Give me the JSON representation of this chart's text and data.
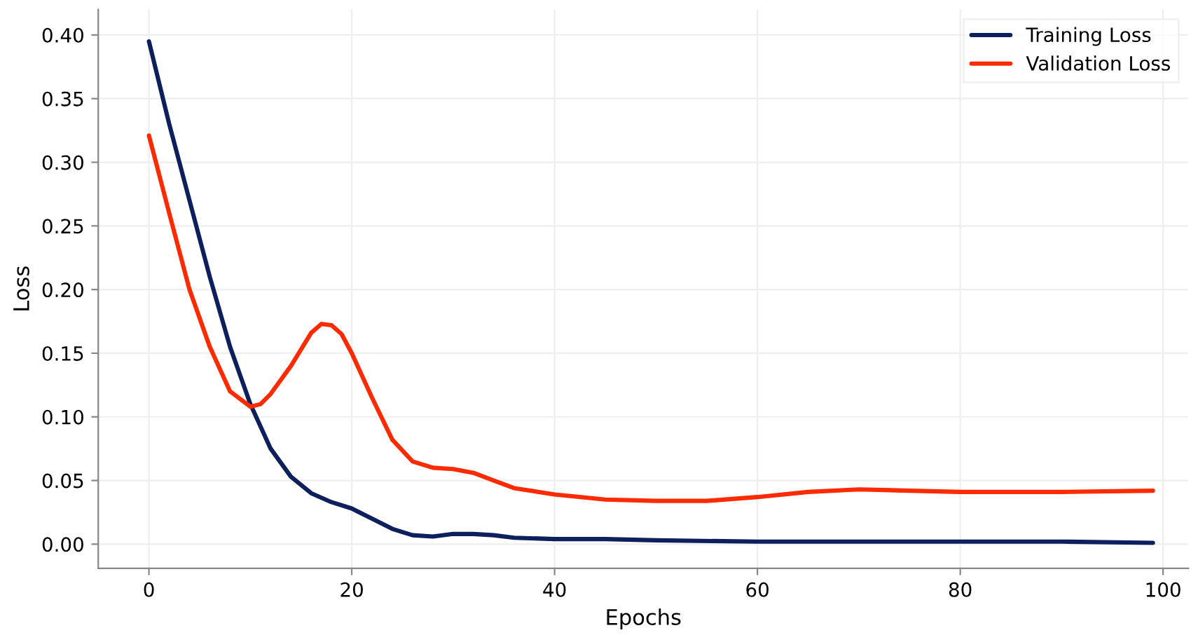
{
  "chart_data": {
    "type": "line",
    "xlabel": "Epochs",
    "ylabel": "Loss",
    "xlim": [
      -5,
      102.5
    ],
    "xticks": [
      0,
      20,
      40,
      60,
      80,
      100
    ],
    "ylim": [
      -0.019,
      0.42
    ],
    "yticks": [
      {
        "value": 0,
        "label": "0.00"
      },
      {
        "value": 0.05,
        "label": "0.05"
      },
      {
        "value": 0.1,
        "label": "0.10"
      },
      {
        "value": 0.15,
        "label": "0.15"
      },
      {
        "value": 0.2,
        "label": "0.20"
      },
      {
        "value": 0.25,
        "label": "0.25"
      },
      {
        "value": 0.3,
        "label": "0.30"
      },
      {
        "value": 0.35,
        "label": "0.35"
      },
      {
        "value": 0.4,
        "label": "0.40"
      }
    ],
    "grid": true,
    "legend": "top right",
    "series": [
      {
        "name": "Training Loss",
        "color": "#0d1f5c",
        "x": [
          0,
          2,
          4,
          6,
          8,
          10,
          12,
          14,
          16,
          18,
          20,
          22,
          24,
          26,
          28,
          30,
          32,
          34,
          36,
          40,
          45,
          50,
          60,
          70,
          80,
          90,
          99
        ],
        "values": [
          0.395,
          0.33,
          0.27,
          0.21,
          0.155,
          0.11,
          0.075,
          0.053,
          0.04,
          0.033,
          0.028,
          0.02,
          0.012,
          0.007,
          0.006,
          0.008,
          0.008,
          0.007,
          0.005,
          0.004,
          0.004,
          0.003,
          0.002,
          0.002,
          0.002,
          0.002,
          0.001
        ]
      },
      {
        "name": "Validation Loss",
        "color": "#ff2a00",
        "x": [
          0,
          2,
          4,
          6,
          8,
          10,
          11,
          12,
          14,
          16,
          17,
          18,
          19,
          20,
          22,
          24,
          26,
          28,
          30,
          32,
          34,
          36,
          40,
          45,
          50,
          55,
          60,
          65,
          70,
          75,
          80,
          90,
          99
        ],
        "values": [
          0.321,
          0.26,
          0.2,
          0.155,
          0.12,
          0.108,
          0.11,
          0.118,
          0.14,
          0.166,
          0.173,
          0.172,
          0.165,
          0.15,
          0.115,
          0.082,
          0.065,
          0.06,
          0.059,
          0.056,
          0.05,
          0.044,
          0.039,
          0.035,
          0.034,
          0.034,
          0.037,
          0.041,
          0.043,
          0.042,
          0.041,
          0.041,
          0.042
        ]
      }
    ]
  }
}
